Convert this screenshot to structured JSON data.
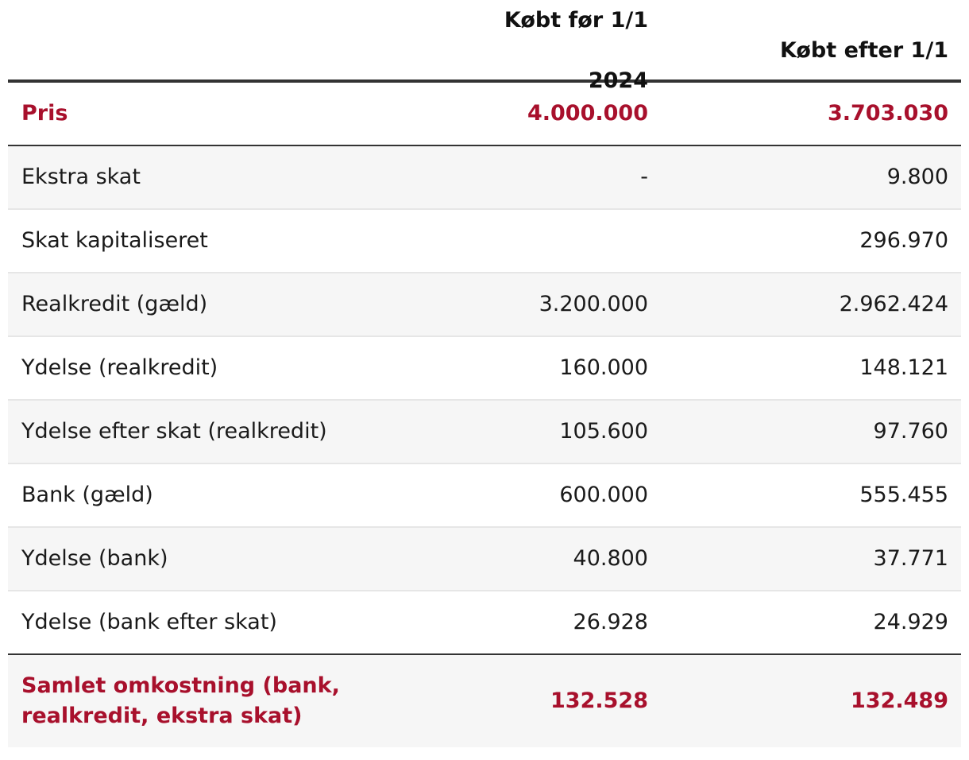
{
  "table": {
    "headers": [
      "",
      "Købt før 1/1 2024",
      "Købt efter 1/1"
    ],
    "rows": [
      {
        "label": "Pris",
        "before": "4.000.000",
        "after": "3.703.030",
        "accent": true
      },
      {
        "label": "Ekstra skat",
        "before": "-",
        "after": "9.800"
      },
      {
        "label": "Skat kapitaliseret",
        "before": "",
        "after": "296.970"
      },
      {
        "label": "Realkredit (gæld)",
        "before": "3.200.000",
        "after": "2.962.424"
      },
      {
        "label": "Ydelse (realkredit)",
        "before": "160.000",
        "after": "148.121"
      },
      {
        "label": "Ydelse efter skat (realkredit)",
        "before": "105.600",
        "after": "97.760"
      },
      {
        "label": "Bank (gæld)",
        "before": "600.000",
        "after": "555.455"
      },
      {
        "label": "Ydelse (bank)",
        "before": "40.800",
        "after": "37.771"
      },
      {
        "label": "Ydelse (bank efter skat)",
        "before": "26.928",
        "after": "24.929"
      },
      {
        "label": "Samlet omkostning (bank, realkredit, ekstra skat)",
        "before": "132.528",
        "after": "132.489",
        "accent": true
      }
    ]
  },
  "colors": {
    "accent": "#a8102c",
    "text": "#1a1a1a",
    "stripe": "#f6f6f6",
    "rule_strong": "#333333",
    "rule_light": "#e6e6e6"
  }
}
